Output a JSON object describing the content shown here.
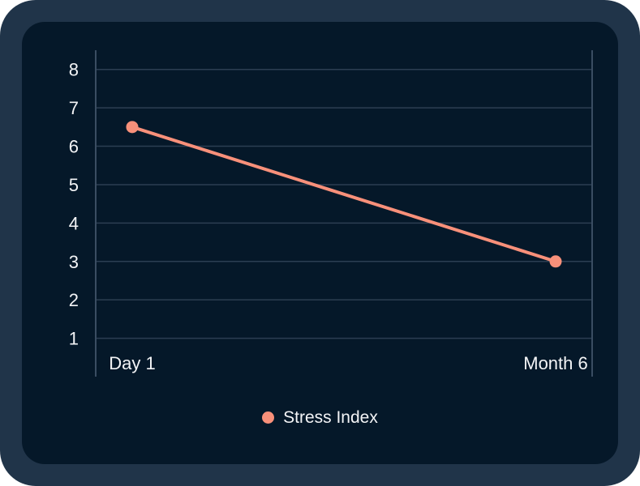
{
  "chart_data": {
    "type": "line",
    "categories": [
      "Day 1",
      "Month 6"
    ],
    "series": [
      {
        "name": "Stress Index",
        "values": [
          6.5,
          3
        ],
        "color": "#F8907A"
      }
    ],
    "title": "",
    "xlabel": "",
    "ylabel": "",
    "ylim": [
      0,
      8.5
    ],
    "yticks": [
      1,
      2,
      3,
      4,
      5,
      6,
      7,
      8
    ],
    "grid": true,
    "legend_position": "bottom"
  },
  "legend": {
    "items": [
      {
        "label": "Stress Index",
        "color": "#F8907A"
      }
    ]
  },
  "colors": {
    "page_background": "#FFFFFF",
    "frame": "#203449",
    "card": "#051829",
    "gridline": "#2C3E52",
    "axis": "#3A4D62",
    "text": "#F3F4F6",
    "accent": "#F8907A"
  }
}
